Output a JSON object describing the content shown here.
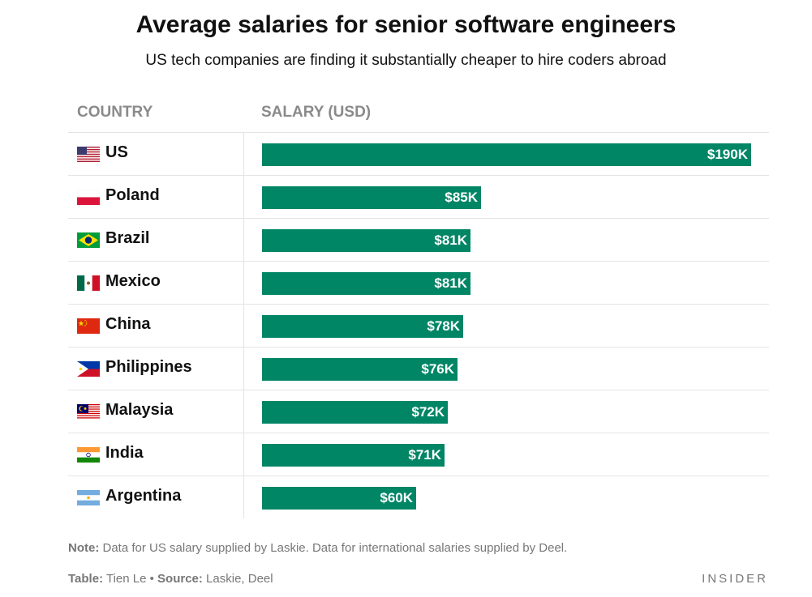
{
  "title": "Average salaries for senior software engineers",
  "subtitle": "US tech companies are finding it substantially cheaper to hire coders abroad",
  "columns": {
    "country": "COUNTRY",
    "salary": "SALARY (USD)"
  },
  "note": {
    "label": "Note:",
    "text": " Data for US salary supplied by Laskie. Data for international salaries supplied by Deel."
  },
  "credit": {
    "table_label": "Table:",
    "table_text": " Tien Le ",
    "bullet": "•",
    "source_label": " Source:",
    "source_text": " Laskie, Deel"
  },
  "brand": "INSIDER",
  "colors": {
    "bar": "#008565"
  },
  "chart_data": {
    "type": "bar",
    "orientation": "horizontal",
    "title": "Average salaries for senior software engineers",
    "subtitle": "US tech companies are finding it substantially cheaper to hire coders abroad",
    "xlabel": "SALARY (USD)",
    "ylabel": "COUNTRY",
    "xlim": [
      0,
      190
    ],
    "categories": [
      "US",
      "Poland",
      "Brazil",
      "Mexico",
      "China",
      "Philippines",
      "Malaysia",
      "India",
      "Argentina"
    ],
    "values": [
      190,
      85,
      81,
      81,
      78,
      76,
      72,
      71,
      60
    ],
    "labels": [
      "$190K",
      "$85K",
      "$81K",
      "$81K",
      "$78K",
      "$76K",
      "$72K",
      "$71K",
      "$60K"
    ],
    "flags": [
      "us-flag-icon",
      "poland-flag-icon",
      "brazil-flag-icon",
      "mexico-flag-icon",
      "china-flag-icon",
      "philippines-flag-icon",
      "malaysia-flag-icon",
      "india-flag-icon",
      "argentina-flag-icon"
    ]
  }
}
